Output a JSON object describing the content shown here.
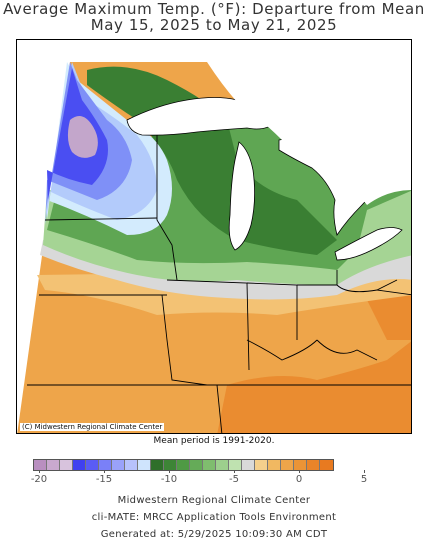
{
  "title_line1": "Average Maximum Temp. (°F): Departure from Mean",
  "title_line2": "May 15, 2025 to May 21, 2025",
  "map_credit": "(C) Midwestern Regional Climate Center",
  "mean_period": "Mean period is 1991-2020.",
  "legend": {
    "colors": [
      "#b98fc0",
      "#c9a9cf",
      "#d8c3dd",
      "#4040f0",
      "#5a5cf5",
      "#7a80f8",
      "#9aa2fa",
      "#b7c2fc",
      "#cfe4fd",
      "#2f6f2a",
      "#3d8536",
      "#4f9a44",
      "#65ab58",
      "#7fbd6e",
      "#9dcf8d",
      "#bfe2b0",
      "#d9d9d9",
      "#f5d08c",
      "#f1b861",
      "#eea54a",
      "#eb9436",
      "#e98429",
      "#e87a20"
    ],
    "tick_labels": [
      "-20",
      "-15",
      "-10",
      "-5",
      "0",
      "5"
    ],
    "tick_values": [
      -20,
      -15,
      -10,
      -5,
      0,
      5
    ]
  },
  "footer": {
    "line1": "Midwestern Regional Climate Center",
    "line2": "cli-MATE: MRCC Application Tools Environment",
    "line3": "Generated at: 5/29/2025 10:09:30 AM CDT"
  },
  "map_regions": [
    {
      "name": "purple",
      "color": "#c3a6cb"
    },
    {
      "name": "deep-blue",
      "color": "#4a4ef2"
    },
    {
      "name": "mid-blue",
      "color": "#7f90f7"
    },
    {
      "name": "light-blue",
      "color": "#b3cbfb"
    },
    {
      "name": "pale-blue",
      "color": "#d3ebfd"
    },
    {
      "name": "dark-green",
      "color": "#3a7f33"
    },
    {
      "name": "mid-green",
      "color": "#5fa653"
    },
    {
      "name": "light-green",
      "color": "#a5d494"
    },
    {
      "name": "gray",
      "color": "#d9d9d9"
    },
    {
      "name": "light-orange",
      "color": "#f3c274"
    },
    {
      "name": "orange",
      "color": "#eea54a"
    },
    {
      "name": "dark-orange",
      "color": "#ea8c30"
    }
  ]
}
